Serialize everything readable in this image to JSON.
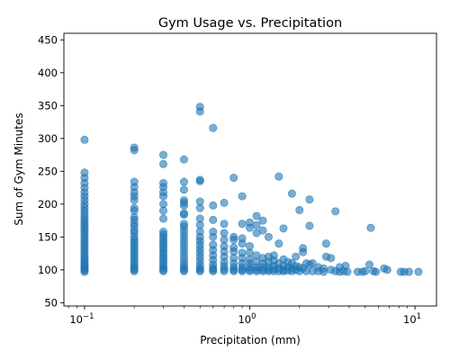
{
  "chart_data": {
    "type": "scatter",
    "title": "Gym Usage vs. Precipitation",
    "xlabel": "Precipitation (mm)",
    "ylabel": "Sum of Gym Minutes",
    "x_scale": "log",
    "xlim": [
      0.075,
      13.5
    ],
    "ylim": [
      45,
      460
    ],
    "x_ticks": [
      {
        "value": 0.1,
        "base": "10",
        "exp": "−1"
      },
      {
        "value": 1,
        "base": "10",
        "exp": "0"
      },
      {
        "value": 10,
        "base": "10",
        "exp": "1"
      }
    ],
    "y_ticks": [
      50,
      100,
      150,
      200,
      250,
      300,
      350,
      400,
      450
    ],
    "grid": false,
    "point_color": "#1f77b4",
    "series": [
      {
        "points": [
          [
            0.1,
            298
          ],
          [
            0.1,
            248
          ],
          [
            0.1,
            240
          ],
          [
            0.1,
            232
          ],
          [
            0.1,
            225
          ],
          [
            0.1,
            218
          ],
          [
            0.1,
            212
          ],
          [
            0.1,
            206
          ],
          [
            0.1,
            200
          ],
          [
            0.1,
            195
          ],
          [
            0.1,
            190
          ],
          [
            0.1,
            185
          ],
          [
            0.1,
            180
          ],
          [
            0.1,
            176
          ],
          [
            0.1,
            172
          ],
          [
            0.1,
            168
          ],
          [
            0.1,
            164
          ],
          [
            0.1,
            160
          ],
          [
            0.1,
            156
          ],
          [
            0.1,
            152
          ],
          [
            0.1,
            148
          ],
          [
            0.1,
            144
          ],
          [
            0.1,
            140
          ],
          [
            0.1,
            136
          ],
          [
            0.1,
            132
          ],
          [
            0.1,
            128
          ],
          [
            0.1,
            124
          ],
          [
            0.1,
            120
          ],
          [
            0.1,
            117
          ],
          [
            0.1,
            114
          ],
          [
            0.1,
            111
          ],
          [
            0.1,
            108
          ],
          [
            0.1,
            105
          ],
          [
            0.1,
            103
          ],
          [
            0.1,
            101
          ],
          [
            0.1,
            99
          ],
          [
            0.1,
            97
          ],
          [
            0.2,
            286
          ],
          [
            0.2,
            282
          ],
          [
            0.2,
            234
          ],
          [
            0.2,
            226
          ],
          [
            0.2,
            218
          ],
          [
            0.2,
            212
          ],
          [
            0.2,
            206
          ],
          [
            0.2,
            194
          ],
          [
            0.2,
            190
          ],
          [
            0.2,
            180
          ],
          [
            0.2,
            176
          ],
          [
            0.2,
            170
          ],
          [
            0.2,
            166
          ],
          [
            0.2,
            160
          ],
          [
            0.2,
            156
          ],
          [
            0.2,
            150
          ],
          [
            0.2,
            146
          ],
          [
            0.2,
            142
          ],
          [
            0.2,
            138
          ],
          [
            0.2,
            134
          ],
          [
            0.2,
            130
          ],
          [
            0.2,
            126
          ],
          [
            0.2,
            122
          ],
          [
            0.2,
            118
          ],
          [
            0.2,
            114
          ],
          [
            0.2,
            110
          ],
          [
            0.2,
            106
          ],
          [
            0.2,
            103
          ],
          [
            0.2,
            100
          ],
          [
            0.2,
            98
          ],
          [
            0.3,
            275
          ],
          [
            0.3,
            261
          ],
          [
            0.3,
            232
          ],
          [
            0.3,
            226
          ],
          [
            0.3,
            218
          ],
          [
            0.3,
            212
          ],
          [
            0.3,
            200
          ],
          [
            0.3,
            190
          ],
          [
            0.3,
            178
          ],
          [
            0.3,
            158
          ],
          [
            0.3,
            154
          ],
          [
            0.3,
            150
          ],
          [
            0.3,
            146
          ],
          [
            0.3,
            142
          ],
          [
            0.3,
            138
          ],
          [
            0.3,
            134
          ],
          [
            0.3,
            130
          ],
          [
            0.3,
            126
          ],
          [
            0.3,
            122
          ],
          [
            0.3,
            118
          ],
          [
            0.3,
            114
          ],
          [
            0.3,
            110
          ],
          [
            0.3,
            106
          ],
          [
            0.3,
            103
          ],
          [
            0.3,
            100
          ],
          [
            0.3,
            98
          ],
          [
            0.4,
            268
          ],
          [
            0.4,
            234
          ],
          [
            0.4,
            222
          ],
          [
            0.4,
            206
          ],
          [
            0.4,
            202
          ],
          [
            0.4,
            198
          ],
          [
            0.4,
            186
          ],
          [
            0.4,
            184
          ],
          [
            0.4,
            170
          ],
          [
            0.4,
            166
          ],
          [
            0.4,
            160
          ],
          [
            0.4,
            154
          ],
          [
            0.4,
            148
          ],
          [
            0.4,
            142
          ],
          [
            0.4,
            136
          ],
          [
            0.4,
            130
          ],
          [
            0.4,
            124
          ],
          [
            0.4,
            118
          ],
          [
            0.4,
            112
          ],
          [
            0.4,
            107
          ],
          [
            0.4,
            103
          ],
          [
            0.4,
            100
          ],
          [
            0.4,
            98
          ],
          [
            0.5,
            348
          ],
          [
            0.5,
            341
          ],
          [
            0.5,
            237
          ],
          [
            0.5,
            235
          ],
          [
            0.5,
            204
          ],
          [
            0.5,
            194
          ],
          [
            0.5,
            178
          ],
          [
            0.5,
            168
          ],
          [
            0.5,
            158
          ],
          [
            0.5,
            150
          ],
          [
            0.5,
            144
          ],
          [
            0.5,
            138
          ],
          [
            0.5,
            132
          ],
          [
            0.5,
            126
          ],
          [
            0.5,
            120
          ],
          [
            0.5,
            114
          ],
          [
            0.5,
            108
          ],
          [
            0.5,
            103
          ],
          [
            0.5,
            100
          ],
          [
            0.5,
            98
          ],
          [
            0.6,
            316
          ],
          [
            0.6,
            198
          ],
          [
            0.6,
            176
          ],
          [
            0.6,
            158
          ],
          [
            0.6,
            150
          ],
          [
            0.6,
            138
          ],
          [
            0.6,
            130
          ],
          [
            0.6,
            122
          ],
          [
            0.6,
            115
          ],
          [
            0.6,
            108
          ],
          [
            0.6,
            103
          ],
          [
            0.6,
            100
          ],
          [
            0.6,
            98
          ],
          [
            0.7,
            202
          ],
          [
            0.7,
            170
          ],
          [
            0.7,
            156
          ],
          [
            0.7,
            146
          ],
          [
            0.7,
            136
          ],
          [
            0.7,
            128
          ],
          [
            0.7,
            120
          ],
          [
            0.7,
            112
          ],
          [
            0.7,
            106
          ],
          [
            0.7,
            101
          ],
          [
            0.7,
            98
          ],
          [
            0.8,
            240
          ],
          [
            0.8,
            150
          ],
          [
            0.8,
            146
          ],
          [
            0.8,
            134
          ],
          [
            0.8,
            128
          ],
          [
            0.8,
            118
          ],
          [
            0.8,
            110
          ],
          [
            0.8,
            104
          ],
          [
            0.8,
            100
          ],
          [
            0.8,
            98
          ],
          [
            0.9,
            212
          ],
          [
            0.9,
            170
          ],
          [
            0.9,
            148
          ],
          [
            0.9,
            140
          ],
          [
            0.9,
            126
          ],
          [
            0.9,
            118
          ],
          [
            0.9,
            110
          ],
          [
            0.9,
            104
          ],
          [
            0.9,
            100
          ],
          [
            0.9,
            98
          ],
          [
            1.0,
            172
          ],
          [
            1.0,
            164
          ],
          [
            1.0,
            136
          ],
          [
            1.0,
            126
          ],
          [
            1.0,
            116
          ],
          [
            1.0,
            110
          ],
          [
            1.0,
            104
          ],
          [
            1.0,
            100
          ],
          [
            1.0,
            98
          ],
          [
            1.1,
            182
          ],
          [
            1.1,
            168
          ],
          [
            1.1,
            156
          ],
          [
            1.1,
            122
          ],
          [
            1.1,
            112
          ],
          [
            1.1,
            104
          ],
          [
            1.1,
            100
          ],
          [
            1.1,
            98
          ],
          [
            1.2,
            175
          ],
          [
            1.2,
            160
          ],
          [
            1.2,
            118
          ],
          [
            1.2,
            110
          ],
          [
            1.2,
            104
          ],
          [
            1.2,
            100
          ],
          [
            1.2,
            98
          ],
          [
            1.3,
            150
          ],
          [
            1.3,
            120
          ],
          [
            1.3,
            112
          ],
          [
            1.3,
            104
          ],
          [
            1.3,
            100
          ],
          [
            1.3,
            98
          ],
          [
            1.4,
            122
          ],
          [
            1.4,
            114
          ],
          [
            1.4,
            106
          ],
          [
            1.4,
            101
          ],
          [
            1.4,
            98
          ],
          [
            1.5,
            242
          ],
          [
            1.5,
            140
          ],
          [
            1.5,
            110
          ],
          [
            1.5,
            102
          ],
          [
            1.5,
            98
          ],
          [
            1.6,
            163
          ],
          [
            1.6,
            116
          ],
          [
            1.6,
            106
          ],
          [
            1.6,
            100
          ],
          [
            1.6,
            98
          ],
          [
            1.7,
            112
          ],
          [
            1.7,
            104
          ],
          [
            1.7,
            99
          ],
          [
            1.8,
            216
          ],
          [
            1.8,
            110
          ],
          [
            1.8,
            102
          ],
          [
            1.8,
            98
          ],
          [
            1.9,
            120
          ],
          [
            1.9,
            106
          ],
          [
            1.9,
            100
          ],
          [
            2.0,
            191
          ],
          [
            2.0,
            104
          ],
          [
            2.0,
            98
          ],
          [
            2.1,
            133
          ],
          [
            2.1,
            127
          ],
          [
            2.1,
            102
          ],
          [
            2.2,
            110
          ],
          [
            2.2,
            98
          ],
          [
            2.3,
            207
          ],
          [
            2.3,
            167
          ],
          [
            2.3,
            108
          ],
          [
            2.4,
            110
          ],
          [
            2.4,
            98
          ],
          [
            2.6,
            104
          ],
          [
            2.6,
            98
          ],
          [
            2.8,
            102
          ],
          [
            2.8,
            97
          ],
          [
            2.9,
            140
          ],
          [
            2.9,
            120
          ],
          [
            3.1,
            118
          ],
          [
            3.1,
            100
          ],
          [
            3.3,
            189
          ],
          [
            3.3,
            98
          ],
          [
            3.5,
            104
          ],
          [
            3.5,
            97
          ],
          [
            3.7,
            98
          ],
          [
            3.8,
            106
          ],
          [
            3.9,
            97
          ],
          [
            4.5,
            97
          ],
          [
            4.8,
            97
          ],
          [
            5.0,
            98
          ],
          [
            5.3,
            108
          ],
          [
            5.4,
            164
          ],
          [
            5.6,
            98
          ],
          [
            5.8,
            97
          ],
          [
            6.5,
            102
          ],
          [
            6.8,
            100
          ],
          [
            8.2,
            97
          ],
          [
            8.6,
            97
          ],
          [
            9.2,
            97
          ],
          [
            10.5,
            97
          ]
        ]
      }
    ]
  }
}
